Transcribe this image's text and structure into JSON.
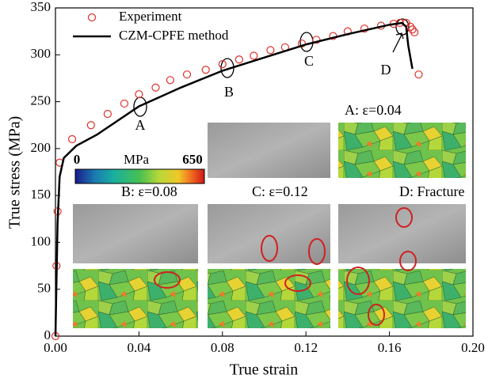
{
  "chart_data": {
    "type": "line",
    "xlabel": "True strain",
    "ylabel": "True stress (MPa)",
    "xlim": [
      0,
      0.2
    ],
    "ylim": [
      0,
      350
    ],
    "xticks": [
      {
        "value": 0,
        "label": "0.00"
      },
      0.04,
      0.08,
      0.12,
      0.16,
      {
        "value": 0.2,
        "label": "0.20"
      }
    ],
    "yticks": [
      0,
      50,
      100,
      150,
      200,
      250,
      300,
      350
    ],
    "legend": "upper left",
    "series": [
      {
        "name": "Experiment",
        "color": "#e0302a",
        "style": "markers",
        "x": [
          0,
          0.0005,
          0.001,
          0.002,
          0.008,
          0.017,
          0.025,
          0.033,
          0.04,
          0.048,
          0.055,
          0.063,
          0.072,
          0.08,
          0.088,
          0.095,
          0.103,
          0.11,
          0.118,
          0.125,
          0.133,
          0.14,
          0.148,
          0.156,
          0.162,
          0.165,
          0.168,
          0.17,
          0.171,
          0.172,
          0.174
        ],
        "values": [
          0,
          75,
          133,
          185,
          210,
          225,
          237,
          248,
          258,
          265,
          273,
          279,
          284,
          290,
          295,
          299,
          305,
          308,
          312,
          316,
          320,
          325,
          328,
          331,
          333,
          334,
          334,
          330,
          327,
          324,
          279
        ]
      },
      {
        "name": "CZM-CPFE method",
        "color": "#000000",
        "style": "line",
        "x": [
          0,
          0.001,
          0.002,
          0.004,
          0.01,
          0.02,
          0.04,
          0.06,
          0.08,
          0.1,
          0.12,
          0.14,
          0.16,
          0.166,
          0.168,
          0.169,
          0.171
        ],
        "values": [
          0,
          120,
          170,
          190,
          203,
          215,
          245,
          265,
          283,
          297,
          311,
          322,
          332,
          334,
          330,
          310,
          285
        ]
      }
    ],
    "annotations": [
      "A",
      "B",
      "C",
      "D",
      "A: ε=0.04",
      "B: ε=0.08",
      "C: ε=0.12",
      "D: Fracture"
    ],
    "colorbar": {
      "min": 0,
      "max": 650,
      "unit": "MPa"
    }
  }
}
